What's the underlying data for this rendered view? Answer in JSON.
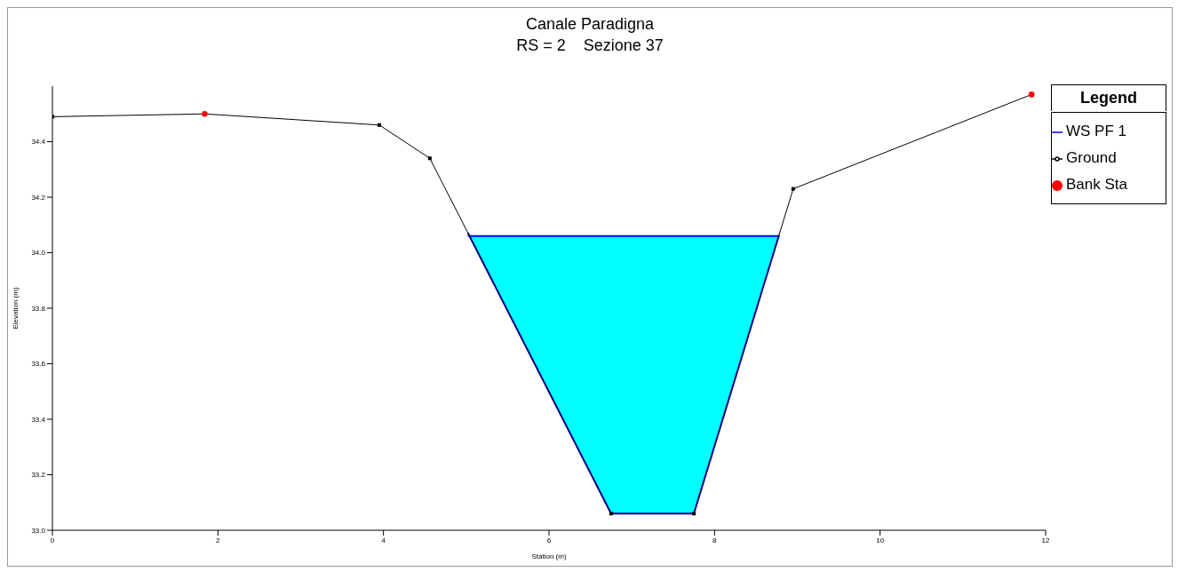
{
  "chart_data": {
    "type": "line",
    "title": "Canale Paradigna",
    "subtitle": "RS = 2    Sezione 37",
    "xlabel": "Station (m)",
    "ylabel": "Elevation (m)",
    "xlim": [
      0,
      12
    ],
    "xticks": [
      0,
      2,
      4,
      6,
      8,
      10,
      12
    ],
    "ylim": [
      33,
      34.6
    ],
    "yticks": [
      {
        "value": 33,
        "label": "33.0"
      },
      {
        "value": 33.2,
        "label": "33.2"
      },
      {
        "value": 33.4,
        "label": "33.4"
      },
      {
        "value": 33.6,
        "label": "33.6"
      },
      {
        "value": 33.8,
        "label": "33.8"
      },
      {
        "value": 34,
        "label": "34.0"
      },
      {
        "value": 34.2,
        "label": "34.2"
      },
      {
        "value": 34.4,
        "label": "34.4"
      }
    ],
    "grid": false,
    "legend": "right",
    "legend_title": "Legend",
    "series": [
      {
        "name": "WS PF 1",
        "type": "area",
        "color": "#0000ff",
        "x": [
          5.02,
          6.75,
          7.75,
          8.78
        ],
        "values": [
          34.06,
          34.06,
          34.06,
          34.06
        ]
      },
      {
        "name": "Ground",
        "color": "#000000",
        "marker": "square",
        "x": [
          0,
          1.84,
          3.95,
          4.56,
          6.75,
          7.75,
          8.95,
          11.83
        ],
        "values": [
          34.49,
          34.5,
          34.46,
          34.34,
          33.06,
          33.06,
          34.23,
          34.57
        ]
      },
      {
        "name": "Bank Sta",
        "type": "scatter",
        "color": "#ff0000",
        "marker": "circle",
        "x": [
          1.84,
          11.83
        ],
        "values": [
          34.5,
          34.57
        ]
      }
    ]
  }
}
